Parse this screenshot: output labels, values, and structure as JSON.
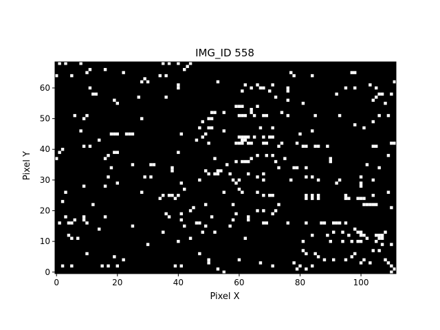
{
  "chart_data": {
    "type": "heatmap",
    "title": "IMG_ID 558",
    "xlabel": "Pixel X",
    "ylabel": "Pixel Y",
    "xlim": [
      -0.5,
      111.5
    ],
    "ylim": [
      -0.5,
      68.5
    ],
    "width": 112,
    "height": 69,
    "origin": "lower",
    "x_ticks": [
      0,
      20,
      40,
      60,
      80,
      100
    ],
    "y_ticks": [
      0,
      10,
      20,
      30,
      40,
      50,
      60
    ],
    "background_color": "#000000",
    "pixel_color": "#ffffff",
    "grid": false,
    "lit_pixels": [
      [
        1,
        68
      ],
      [
        3,
        68
      ],
      [
        8,
        68
      ],
      [
        35,
        68
      ],
      [
        37,
        68
      ],
      [
        40,
        68
      ],
      [
        44,
        68
      ],
      [
        0,
        64
      ],
      [
        5,
        64
      ],
      [
        10,
        65
      ],
      [
        11,
        66
      ],
      [
        16,
        66
      ],
      [
        22,
        65
      ],
      [
        34,
        64
      ],
      [
        36,
        64
      ],
      [
        42,
        66
      ],
      [
        43,
        67
      ],
      [
        77,
        65
      ],
      [
        78,
        64
      ],
      [
        84,
        64
      ],
      [
        97,
        65
      ],
      [
        98,
        65
      ],
      [
        28,
        62
      ],
      [
        29,
        63
      ],
      [
        30,
        62
      ],
      [
        40,
        61
      ],
      [
        40,
        60
      ],
      [
        53,
        62
      ],
      [
        62,
        61
      ],
      [
        64,
        60
      ],
      [
        66,
        61
      ],
      [
        67,
        60
      ],
      [
        68,
        60
      ],
      [
        71,
        61
      ],
      [
        76,
        60
      ],
      [
        76,
        59
      ],
      [
        92,
        58
      ],
      [
        95,
        60
      ],
      [
        98,
        60
      ],
      [
        103,
        61
      ],
      [
        105,
        60
      ],
      [
        106,
        58
      ],
      [
        107,
        58
      ],
      [
        110,
        58
      ],
      [
        111,
        62
      ],
      [
        11,
        60
      ],
      [
        12,
        58
      ],
      [
        13,
        58
      ],
      [
        19,
        56
      ],
      [
        20,
        55
      ],
      [
        27,
        57
      ],
      [
        36,
        57
      ],
      [
        61,
        59
      ],
      [
        70,
        59
      ],
      [
        72,
        57
      ],
      [
        76,
        56
      ],
      [
        81,
        55
      ],
      [
        104,
        56
      ],
      [
        105,
        57
      ],
      [
        108,
        55
      ],
      [
        6,
        51
      ],
      [
        9,
        50
      ],
      [
        10,
        51
      ],
      [
        8,
        46
      ],
      [
        28,
        50
      ],
      [
        48,
        49
      ],
      [
        50,
        50
      ],
      [
        51,
        50
      ],
      [
        51,
        52
      ],
      [
        52,
        52
      ],
      [
        55,
        52
      ],
      [
        59,
        54
      ],
      [
        60,
        54
      ],
      [
        61,
        54
      ],
      [
        60,
        51
      ],
      [
        61,
        51
      ],
      [
        62,
        51
      ],
      [
        64,
        52
      ],
      [
        64,
        53
      ],
      [
        65,
        51
      ],
      [
        66,
        54
      ],
      [
        68,
        51
      ],
      [
        69,
        51
      ],
      [
        74,
        52
      ],
      [
        76,
        51
      ],
      [
        85,
        51
      ],
      [
        93,
        51
      ],
      [
        98,
        48
      ],
      [
        101,
        47
      ],
      [
        104,
        49
      ],
      [
        106,
        51
      ],
      [
        109,
        51
      ],
      [
        47,
        47
      ],
      [
        50,
        47
      ],
      [
        51,
        47
      ],
      [
        55,
        46
      ],
      [
        60,
        44
      ],
      [
        61,
        44
      ],
      [
        62,
        44
      ],
      [
        63,
        44
      ],
      [
        67,
        47
      ],
      [
        71,
        47
      ],
      [
        80,
        45
      ],
      [
        84,
        46
      ],
      [
        2,
        40
      ],
      [
        1,
        39
      ],
      [
        9,
        41
      ],
      [
        11,
        41
      ],
      [
        14,
        43
      ],
      [
        18,
        45
      ],
      [
        19,
        45
      ],
      [
        20,
        45
      ],
      [
        23,
        45
      ],
      [
        24,
        45
      ],
      [
        25,
        45
      ],
      [
        41,
        45
      ],
      [
        46,
        43
      ],
      [
        48,
        44
      ],
      [
        49,
        45
      ],
      [
        50,
        42
      ],
      [
        59,
        42
      ],
      [
        60,
        42
      ],
      [
        61,
        42
      ],
      [
        61,
        43
      ],
      [
        62,
        43
      ],
      [
        63,
        42
      ],
      [
        64,
        42
      ],
      [
        65,
        44
      ],
      [
        68,
        44
      ],
      [
        68,
        42
      ],
      [
        69,
        42
      ],
      [
        70,
        44
      ],
      [
        71,
        44
      ],
      [
        73,
        41
      ],
      [
        74,
        42
      ],
      [
        79,
        42
      ],
      [
        81,
        41
      ],
      [
        82,
        41
      ],
      [
        85,
        41
      ],
      [
        86,
        41
      ],
      [
        89,
        41
      ],
      [
        104,
        41
      ],
      [
        105,
        41
      ],
      [
        110,
        42
      ],
      [
        111,
        42
      ],
      [
        109,
        38
      ],
      [
        0,
        37
      ],
      [
        16,
        37
      ],
      [
        17,
        38
      ],
      [
        19,
        39
      ],
      [
        20,
        39
      ],
      [
        25,
        35
      ],
      [
        31,
        35
      ],
      [
        32,
        35
      ],
      [
        38,
        34
      ],
      [
        38,
        33
      ],
      [
        40,
        39
      ],
      [
        49,
        33
      ],
      [
        52,
        37
      ],
      [
        53,
        33
      ],
      [
        54,
        33
      ],
      [
        56,
        35
      ],
      [
        59,
        36
      ],
      [
        61,
        36
      ],
      [
        62,
        36
      ],
      [
        63,
        36
      ],
      [
        64,
        37
      ],
      [
        66,
        38
      ],
      [
        69,
        38
      ],
      [
        71,
        38
      ],
      [
        72,
        36
      ],
      [
        73,
        34
      ],
      [
        75,
        37
      ],
      [
        78,
        34
      ],
      [
        79,
        34
      ],
      [
        82,
        34
      ],
      [
        90,
        37
      ],
      [
        90,
        36
      ],
      [
        102,
        35
      ],
      [
        106,
        34
      ],
      [
        9,
        28
      ],
      [
        16,
        28
      ],
      [
        17,
        31
      ],
      [
        18,
        34
      ],
      [
        20,
        29
      ],
      [
        29,
        31
      ],
      [
        31,
        31
      ],
      [
        41,
        29
      ],
      [
        42,
        27
      ],
      [
        47,
        30
      ],
      [
        50,
        32
      ],
      [
        52,
        32
      ],
      [
        53,
        32
      ],
      [
        57,
        32
      ],
      [
        58,
        30
      ],
      [
        59,
        29
      ],
      [
        60,
        30
      ],
      [
        60,
        27
      ],
      [
        61,
        26
      ],
      [
        63,
        32
      ],
      [
        66,
        31
      ],
      [
        68,
        32
      ],
      [
        68,
        30
      ],
      [
        77,
        30
      ],
      [
        82,
        31
      ],
      [
        84,
        31
      ],
      [
        86,
        30
      ],
      [
        92,
        29
      ],
      [
        93,
        30
      ],
      [
        100,
        31
      ],
      [
        100,
        29
      ],
      [
        100,
        28
      ],
      [
        104,
        30
      ],
      [
        109,
        26
      ],
      [
        2,
        23
      ],
      [
        3,
        26
      ],
      [
        12,
        22
      ],
      [
        28,
        26
      ],
      [
        35,
        25
      ],
      [
        37,
        25
      ],
      [
        38,
        25
      ],
      [
        34,
        24
      ],
      [
        39,
        24
      ],
      [
        40,
        25
      ],
      [
        44,
        20
      ],
      [
        45,
        21
      ],
      [
        49,
        22
      ],
      [
        55,
        26
      ],
      [
        58,
        22
      ],
      [
        59,
        19
      ],
      [
        66,
        26
      ],
      [
        68,
        25
      ],
      [
        70,
        25
      ],
      [
        71,
        25
      ],
      [
        73,
        22
      ],
      [
        82,
        24
      ],
      [
        82,
        25
      ],
      [
        84,
        24
      ],
      [
        84,
        25
      ],
      [
        86,
        24
      ],
      [
        86,
        25
      ],
      [
        95,
        24
      ],
      [
        95,
        25
      ],
      [
        96,
        24
      ],
      [
        99,
        24
      ],
      [
        100,
        24
      ],
      [
        101,
        24
      ],
      [
        101,
        22
      ],
      [
        102,
        22
      ],
      [
        103,
        22
      ],
      [
        104,
        22
      ],
      [
        105,
        22
      ],
      [
        110,
        21
      ],
      [
        104,
        25
      ],
      [
        1,
        16
      ],
      [
        3,
        18
      ],
      [
        4,
        16
      ],
      [
        5,
        16
      ],
      [
        6,
        17
      ],
      [
        9,
        18
      ],
      [
        10,
        16
      ],
      [
        16,
        18
      ],
      [
        25,
        15
      ],
      [
        36,
        19
      ],
      [
        37,
        18
      ],
      [
        41,
        19
      ],
      [
        41,
        17
      ],
      [
        42,
        15
      ],
      [
        46,
        16
      ],
      [
        47,
        16
      ],
      [
        51,
        18
      ],
      [
        58,
        17
      ],
      [
        63,
        18
      ],
      [
        63,
        17
      ],
      [
        66,
        20
      ],
      [
        68,
        20
      ],
      [
        68,
        16
      ],
      [
        69,
        16
      ],
      [
        71,
        19
      ],
      [
        72,
        20
      ],
      [
        76,
        16
      ],
      [
        82,
        16
      ],
      [
        87,
        16
      ],
      [
        88,
        16
      ],
      [
        91,
        16
      ],
      [
        92,
        16
      ],
      [
        93,
        16
      ],
      [
        95,
        16
      ],
      [
        94,
        13
      ],
      [
        98,
        14
      ],
      [
        99,
        13
      ],
      [
        100,
        13
      ],
      [
        100,
        12
      ],
      [
        101,
        12
      ],
      [
        102,
        11
      ],
      [
        105,
        12
      ],
      [
        106,
        12
      ],
      [
        107,
        12
      ],
      [
        108,
        13
      ],
      [
        4,
        12
      ],
      [
        5,
        11
      ],
      [
        7,
        11
      ],
      [
        10,
        6
      ],
      [
        9,
        17
      ],
      [
        14,
        14
      ],
      [
        30,
        9
      ],
      [
        35,
        13
      ],
      [
        40,
        10
      ],
      [
        44,
        11
      ],
      [
        48,
        13
      ],
      [
        49,
        15
      ],
      [
        52,
        13
      ],
      [
        57,
        15
      ],
      [
        62,
        11
      ],
      [
        81,
        10
      ],
      [
        81,
        7
      ],
      [
        82,
        6
      ],
      [
        84,
        12
      ],
      [
        85,
        6
      ],
      [
        89,
        12
      ],
      [
        90,
        10
      ],
      [
        91,
        13
      ],
      [
        94,
        10
      ],
      [
        96,
        12
      ],
      [
        97,
        10
      ],
      [
        99,
        10
      ],
      [
        100,
        10
      ],
      [
        105,
        10
      ],
      [
        106,
        11
      ],
      [
        107,
        11
      ],
      [
        107,
        9
      ],
      [
        104,
        7
      ],
      [
        110,
        9
      ],
      [
        2,
        2
      ],
      [
        5,
        2
      ],
      [
        15,
        2
      ],
      [
        17,
        2
      ],
      [
        19,
        5
      ],
      [
        20,
        2
      ],
      [
        22,
        4
      ],
      [
        35,
        13
      ],
      [
        39,
        2
      ],
      [
        41,
        2
      ],
      [
        47,
        6
      ],
      [
        50,
        3
      ],
      [
        50,
        4
      ],
      [
        53,
        1
      ],
      [
        55,
        0
      ],
      [
        60,
        4
      ],
      [
        67,
        3
      ],
      [
        71,
        2
      ],
      [
        78,
        3
      ],
      [
        79,
        1
      ],
      [
        80,
        2
      ],
      [
        82,
        1
      ],
      [
        84,
        2
      ],
      [
        86,
        5
      ],
      [
        88,
        4
      ],
      [
        91,
        4
      ],
      [
        95,
        4
      ],
      [
        97,
        5
      ],
      [
        98,
        6
      ],
      [
        100,
        3
      ],
      [
        101,
        4
      ],
      [
        103,
        3
      ],
      [
        106,
        7
      ],
      [
        108,
        4
      ],
      [
        109,
        3
      ],
      [
        110,
        2
      ],
      [
        110,
        0
      ],
      [
        111,
        1
      ]
    ]
  }
}
